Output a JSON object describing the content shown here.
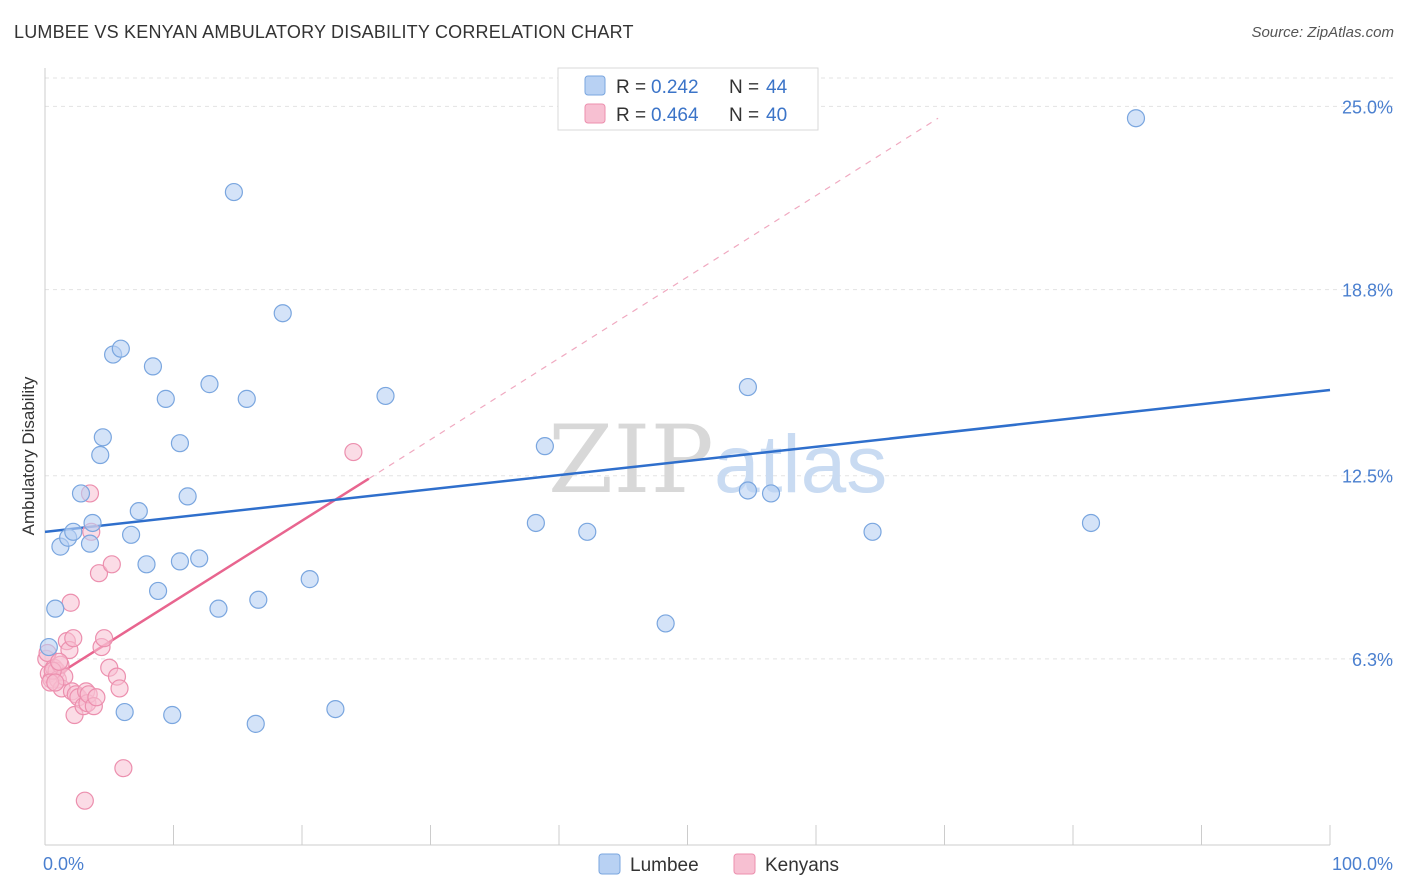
{
  "title": "LUMBEE VS KENYAN AMBULATORY DISABILITY CORRELATION CHART",
  "source": "Source: ZipAtlas.com",
  "watermark": {
    "part1": "ZIP",
    "part2": "atlas"
  },
  "colors": {
    "lumbee_fill": "#b8d1f3",
    "lumbee_stroke": "#7aa6df",
    "lumbee_line": "#2f6fcc",
    "kenyan_fill": "#f7c0d2",
    "kenyan_stroke": "#ec8fae",
    "kenyan_line": "#e8658f",
    "tick_label": "#4a7fcf",
    "grid": "#e3e3e3"
  },
  "legend": {
    "rows": [
      {
        "r_label": "R =",
        "r_value": "0.242",
        "n_label": "N =",
        "n_value": "44"
      },
      {
        "r_label": "R =",
        "r_value": "0.464",
        "n_label": "N =",
        "n_value": "40"
      }
    ]
  },
  "bottom_legend": {
    "items": [
      "Lumbee",
      "Kenyans"
    ]
  },
  "chart_data": {
    "type": "scatter",
    "title": "LUMBEE VS KENYAN AMBULATORY DISABILITY CORRELATION CHART",
    "xlabel": "",
    "ylabel": "Ambulatory Disability",
    "xlim": [
      0,
      100
    ],
    "ylim": [
      0,
      26.3
    ],
    "x_tick_labels": [
      "0.0%",
      "100.0%"
    ],
    "y_ticks": [
      6.3,
      12.5,
      18.8,
      25.0
    ],
    "y_tick_labels": [
      "6.3%",
      "12.5%",
      "18.8%",
      "25.0%"
    ],
    "grid": true,
    "legend_position": "top-center",
    "series": [
      {
        "name": "Lumbee",
        "stats": {
          "R": 0.242,
          "N": 44
        },
        "trend": {
          "x": [
            0,
            100
          ],
          "y": [
            10.6,
            15.4
          ],
          "style": "solid"
        },
        "points": [
          [
            0.3,
            6.7
          ],
          [
            0.8,
            8.0
          ],
          [
            1.2,
            10.1
          ],
          [
            1.8,
            10.4
          ],
          [
            2.2,
            10.6
          ],
          [
            2.8,
            11.9
          ],
          [
            3.5,
            10.2
          ],
          [
            3.7,
            10.9
          ],
          [
            4.3,
            13.2
          ],
          [
            4.5,
            13.8
          ],
          [
            5.3,
            16.6
          ],
          [
            5.9,
            16.8
          ],
          [
            6.2,
            4.5
          ],
          [
            6.7,
            10.5
          ],
          [
            7.3,
            11.3
          ],
          [
            7.9,
            9.5
          ],
          [
            8.4,
            16.2
          ],
          [
            8.8,
            8.6
          ],
          [
            9.4,
            15.1
          ],
          [
            9.9,
            4.4
          ],
          [
            10.5,
            13.6
          ],
          [
            10.5,
            9.6
          ],
          [
            11.1,
            11.8
          ],
          [
            12.0,
            9.7
          ],
          [
            12.8,
            15.6
          ],
          [
            13.5,
            8.0
          ],
          [
            14.7,
            22.1
          ],
          [
            15.7,
            15.1
          ],
          [
            16.4,
            4.1
          ],
          [
            16.6,
            8.3
          ],
          [
            18.5,
            18.0
          ],
          [
            20.6,
            9.0
          ],
          [
            22.6,
            4.6
          ],
          [
            26.5,
            15.2
          ],
          [
            38.2,
            10.9
          ],
          [
            38.9,
            13.5
          ],
          [
            42.2,
            10.6
          ],
          [
            48.3,
            7.5
          ],
          [
            54.7,
            15.5
          ],
          [
            54.7,
            12.0
          ],
          [
            56.5,
            11.9
          ],
          [
            64.4,
            10.6
          ],
          [
            81.4,
            10.9
          ],
          [
            84.9,
            24.6
          ]
        ]
      },
      {
        "name": "Kenyans",
        "stats": {
          "R": 0.464,
          "N": 40
        },
        "trend": {
          "x": [
            0,
            25.2
          ],
          "y": [
            5.5,
            12.4
          ],
          "style": "solid",
          "extension": {
            "x": [
              25.2,
              69.5
            ],
            "y": [
              12.4,
              24.6
            ],
            "style": "dashed"
          }
        },
        "points": [
          [
            0.1,
            6.3
          ],
          [
            0.3,
            5.8
          ],
          [
            0.5,
            5.6
          ],
          [
            0.7,
            6.0
          ],
          [
            0.9,
            5.9
          ],
          [
            1.0,
            5.6
          ],
          [
            1.2,
            6.1
          ],
          [
            1.3,
            5.3
          ],
          [
            1.5,
            5.7
          ],
          [
            1.7,
            6.9
          ],
          [
            1.9,
            6.6
          ],
          [
            2.0,
            8.2
          ],
          [
            2.1,
            5.2
          ],
          [
            2.2,
            7.0
          ],
          [
            2.3,
            4.4
          ],
          [
            2.4,
            5.1
          ],
          [
            2.6,
            5.0
          ],
          [
            3.0,
            4.7
          ],
          [
            3.1,
            1.5
          ],
          [
            3.2,
            5.2
          ],
          [
            3.3,
            4.8
          ],
          [
            3.4,
            5.1
          ],
          [
            3.5,
            11.9
          ],
          [
            3.6,
            10.6
          ],
          [
            3.8,
            4.7
          ],
          [
            4.0,
            5.0
          ],
          [
            4.2,
            9.2
          ],
          [
            4.4,
            6.7
          ],
          [
            4.6,
            7.0
          ],
          [
            5.0,
            6.0
          ],
          [
            5.2,
            9.5
          ],
          [
            5.6,
            5.7
          ],
          [
            5.8,
            5.3
          ],
          [
            6.1,
            2.6
          ],
          [
            0.2,
            6.5
          ],
          [
            0.6,
            5.9
          ],
          [
            0.4,
            5.5
          ],
          [
            1.1,
            6.2
          ],
          [
            0.8,
            5.5
          ],
          [
            24.0,
            13.3
          ]
        ]
      }
    ]
  }
}
